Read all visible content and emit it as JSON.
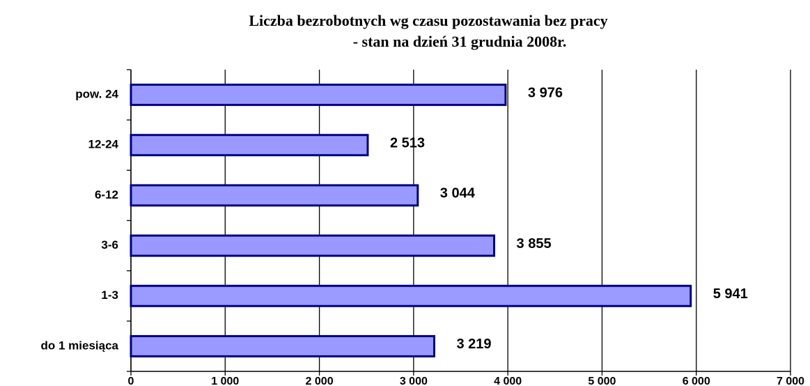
{
  "chart_data": {
    "type": "barh",
    "title": "Liczba bezrobotnych wg czasu pozostawania bez pracy",
    "subtitle": "- stan na dzień 31 grudnia 2008r.",
    "categories": [
      "pow. 24",
      "12-24",
      "6-12",
      "3-6",
      "1-3",
      "do 1 miesiąca"
    ],
    "values": [
      3976,
      2513,
      3044,
      3855,
      5941,
      3219
    ],
    "value_labels": [
      "3 976",
      "2 513",
      "3 044",
      "3 855",
      "5 941",
      "3 219"
    ],
    "color": "#9999ff",
    "edge_color": "#000080",
    "xlim": [
      0,
      7000
    ],
    "xticks": [
      0,
      {
        "value": 1000,
        "label": "1 000"
      },
      {
        "value": 2000,
        "label": "2 000"
      },
      {
        "value": 3000,
        "label": "3 000"
      },
      {
        "value": 4000,
        "label": "4 000"
      },
      {
        "value": 5000,
        "label": "5 000"
      },
      {
        "value": 6000,
        "label": "6 000"
      },
      {
        "value": 7000,
        "label": "7 000"
      }
    ],
    "grid": true
  }
}
